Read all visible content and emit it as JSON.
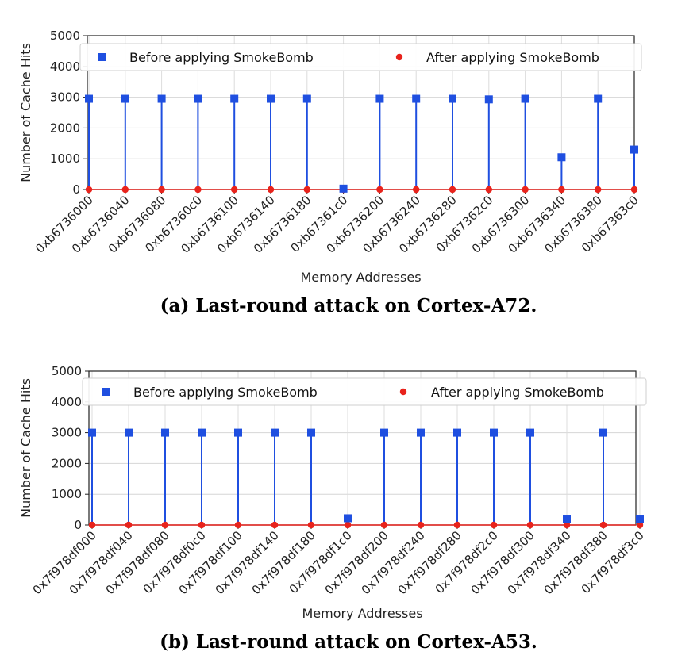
{
  "chart_data": [
    {
      "type": "scatter",
      "caption": "(a) Last-round attack on Cortex-A72.",
      "xlabel": "Memory Addresses",
      "ylabel": "Number of Cache Hits",
      "ylim": [
        0,
        5000
      ],
      "yticks": [
        0,
        1000,
        2000,
        3000,
        4000,
        5000
      ],
      "grid": true,
      "legend_position": "top",
      "categories": [
        "0xb6736000",
        "0xb6736040",
        "0xb6736080",
        "0xb67360c0",
        "0xb6736100",
        "0xb6736140",
        "0xb6736180",
        "0xb67361c0",
        "0xb6736200",
        "0xb6736240",
        "0xb6736280",
        "0xb67362c0",
        "0xb6736300",
        "0xb6736340",
        "0xb6736380",
        "0xb67363c0"
      ],
      "series": [
        {
          "name": "Before applying SmokeBomb",
          "color": "#1f4fe0",
          "marker": "square",
          "values": [
            2950,
            2950,
            2950,
            2950,
            2950,
            2950,
            2950,
            30,
            2950,
            2950,
            2950,
            2930,
            2950,
            1050,
            2950,
            1300
          ]
        },
        {
          "name": "After applying SmokeBomb",
          "color": "#e8231c",
          "marker": "circle",
          "values": [
            0,
            0,
            0,
            0,
            0,
            0,
            0,
            0,
            0,
            0,
            0,
            0,
            0,
            0,
            0,
            0
          ]
        }
      ]
    },
    {
      "type": "scatter",
      "caption": "(b) Last-round attack on Cortex-A53.",
      "xlabel": "Memory Addresses",
      "ylabel": "Number of Cache Hits",
      "ylim": [
        0,
        5000
      ],
      "yticks": [
        0,
        1000,
        2000,
        3000,
        4000,
        5000
      ],
      "grid": true,
      "legend_position": "top",
      "categories": [
        "0x7f978df000",
        "0x7f978df040",
        "0x7f978df080",
        "0x7f978df0c0",
        "0x7f978df100",
        "0x7f978df140",
        "0x7f978df180",
        "0x7f978df1c0",
        "0x7f978df200",
        "0x7f978df240",
        "0x7f978df280",
        "0x7f978df2c0",
        "0x7f978df300",
        "0x7f978df340",
        "0x7f978df380",
        "0x7f978df3c0"
      ],
      "series": [
        {
          "name": "Before applying SmokeBomb",
          "color": "#1f4fe0",
          "marker": "square",
          "values": [
            3000,
            3000,
            3000,
            3000,
            3000,
            3000,
            3000,
            220,
            3000,
            3000,
            3000,
            3000,
            3000,
            180,
            3000,
            180
          ]
        },
        {
          "name": "After applying SmokeBomb",
          "color": "#e8231c",
          "marker": "circle",
          "values": [
            0,
            0,
            0,
            0,
            0,
            0,
            0,
            0,
            0,
            0,
            0,
            0,
            0,
            0,
            0,
            0
          ]
        }
      ]
    }
  ]
}
